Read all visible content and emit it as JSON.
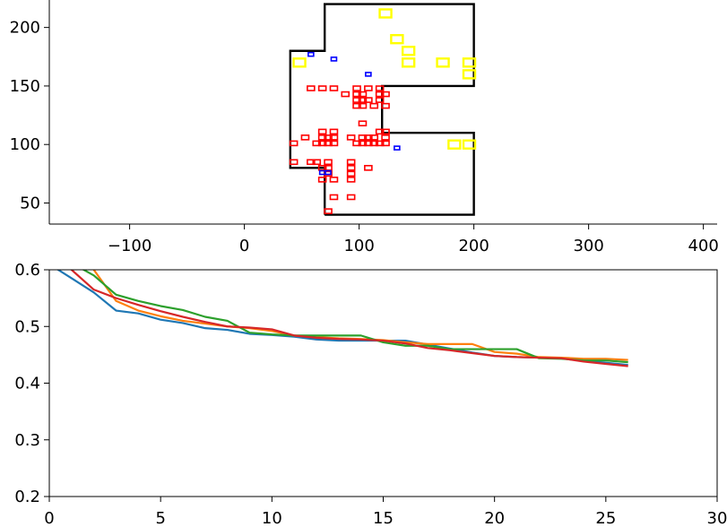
{
  "chart_data": [
    {
      "type": "scatter",
      "xlim": [
        -170,
        412
      ],
      "ylim": [
        32,
        225
      ],
      "x_ticks": [
        -100,
        0,
        100,
        200,
        300,
        400
      ],
      "x_tick_labels": [
        "−100",
        "0",
        "100",
        "200",
        "300",
        "400"
      ],
      "y_ticks": [
        50,
        100,
        150,
        200
      ],
      "y_tick_labels": [
        "50",
        "100",
        "150",
        "200"
      ],
      "grid": false,
      "colors": {
        "outline": "#000000",
        "small_red": "#ff0000",
        "small_blue": "#0000ff",
        "large_yellow": "#ffff00"
      },
      "outline": [
        [
          70,
          40
        ],
        [
          70,
          80
        ],
        [
          40,
          80
        ],
        [
          40,
          180
        ],
        [
          70,
          180
        ],
        [
          70,
          220
        ],
        [
          200,
          220
        ],
        [
          200,
          150
        ],
        [
          120,
          150
        ],
        [
          120,
          110
        ],
        [
          200,
          110
        ],
        [
          200,
          40
        ],
        [
          70,
          40
        ]
      ],
      "red_points": [
        [
          58,
          148
        ],
        [
          68,
          148
        ],
        [
          78,
          148
        ],
        [
          98,
          148
        ],
        [
          108,
          148
        ],
        [
          118,
          148
        ],
        [
          88,
          143
        ],
        [
          98,
          143
        ],
        [
          103,
          143
        ],
        [
          118,
          143
        ],
        [
          123,
          143
        ],
        [
          98,
          138
        ],
        [
          103,
          138
        ],
        [
          108,
          138
        ],
        [
          118,
          138
        ],
        [
          98,
          133
        ],
        [
          103,
          133
        ],
        [
          113,
          133
        ],
        [
          123,
          133
        ],
        [
          103,
          118
        ],
        [
          68,
          111
        ],
        [
          78,
          111
        ],
        [
          118,
          111
        ],
        [
          123,
          111
        ],
        [
          68,
          106
        ],
        [
          73,
          106
        ],
        [
          78,
          106
        ],
        [
          93,
          106
        ],
        [
          103,
          106
        ],
        [
          108,
          106
        ],
        [
          113,
          106
        ],
        [
          123,
          106
        ],
        [
          53,
          106
        ],
        [
          43,
          101
        ],
        [
          63,
          101
        ],
        [
          68,
          101
        ],
        [
          73,
          101
        ],
        [
          78,
          101
        ],
        [
          98,
          101
        ],
        [
          103,
          101
        ],
        [
          108,
          101
        ],
        [
          113,
          101
        ],
        [
          118,
          101
        ],
        [
          123,
          101
        ],
        [
          43,
          85
        ],
        [
          58,
          85
        ],
        [
          63,
          85
        ],
        [
          73,
          85
        ],
        [
          93,
          85
        ],
        [
          68,
          80
        ],
        [
          73,
          80
        ],
        [
          93,
          80
        ],
        [
          108,
          80
        ],
        [
          73,
          75
        ],
        [
          93,
          75
        ],
        [
          68,
          70
        ],
        [
          78,
          70
        ],
        [
          93,
          70
        ],
        [
          78,
          55
        ],
        [
          93,
          55
        ],
        [
          73,
          43
        ]
      ],
      "blue_points": [
        [
          58,
          177
        ],
        [
          78,
          173
        ],
        [
          108,
          160
        ],
        [
          133,
          97
        ],
        [
          68,
          76
        ],
        [
          73,
          76
        ]
      ],
      "yellow_points": [
        [
          123,
          212
        ],
        [
          133,
          190
        ],
        [
          143,
          180
        ],
        [
          143,
          170
        ],
        [
          48,
          170
        ],
        [
          173,
          170
        ],
        [
          196,
          170
        ],
        [
          196,
          160
        ],
        [
          183,
          100
        ],
        [
          196,
          100
        ]
      ]
    },
    {
      "type": "line",
      "xlim": [
        0,
        30
      ],
      "ylim": [
        0.2,
        0.6
      ],
      "x_ticks": [
        0,
        5,
        10,
        15,
        20,
        25,
        30
      ],
      "y_ticks": [
        0.2,
        0.3,
        0.4,
        0.5,
        0.6
      ],
      "y_tick_labels": [
        "0.2",
        "0.3",
        "0.4",
        "0.5",
        "0.6"
      ],
      "grid": false,
      "x": [
        0,
        1,
        2,
        3,
        4,
        5,
        6,
        7,
        8,
        9,
        10,
        11,
        12,
        13,
        14,
        15,
        16,
        17,
        18,
        19,
        20,
        21,
        22,
        23,
        24,
        25,
        26
      ],
      "series": [
        {
          "color": "#1f77b4",
          "values": [
            0.61,
            0.585,
            0.56,
            0.528,
            0.523,
            0.512,
            0.506,
            0.497,
            0.494,
            0.487,
            0.485,
            0.482,
            0.477,
            0.475,
            0.475,
            0.475,
            0.475,
            0.468,
            0.461,
            0.454,
            0.448,
            0.446,
            0.445,
            0.444,
            0.44,
            0.436,
            0.432
          ]
        },
        {
          "color": "#ff7f0e",
          "values": [
            0.64,
            0.625,
            0.6,
            0.545,
            0.528,
            0.518,
            0.51,
            0.505,
            0.5,
            0.497,
            0.492,
            0.484,
            0.481,
            0.479,
            0.478,
            0.476,
            0.472,
            0.469,
            0.469,
            0.469,
            0.455,
            0.452,
            0.446,
            0.445,
            0.443,
            0.443,
            0.441
          ]
        },
        {
          "color": "#2ca02c",
          "values": [
            0.65,
            0.612,
            0.59,
            0.556,
            0.545,
            0.536,
            0.529,
            0.517,
            0.51,
            0.489,
            0.486,
            0.484,
            0.484,
            0.484,
            0.484,
            0.472,
            0.466,
            0.466,
            0.46,
            0.46,
            0.46,
            0.46,
            0.444,
            0.443,
            0.44,
            0.44,
            0.437
          ]
        },
        {
          "color": "#d62728",
          "values": [
            0.625,
            0.6,
            0.565,
            0.55,
            0.538,
            0.527,
            0.517,
            0.508,
            0.5,
            0.498,
            0.495,
            0.484,
            0.48,
            0.478,
            0.477,
            0.475,
            0.47,
            0.462,
            0.458,
            0.453,
            0.448,
            0.446,
            0.445,
            0.444,
            0.438,
            0.434,
            0.43
          ]
        }
      ]
    }
  ]
}
